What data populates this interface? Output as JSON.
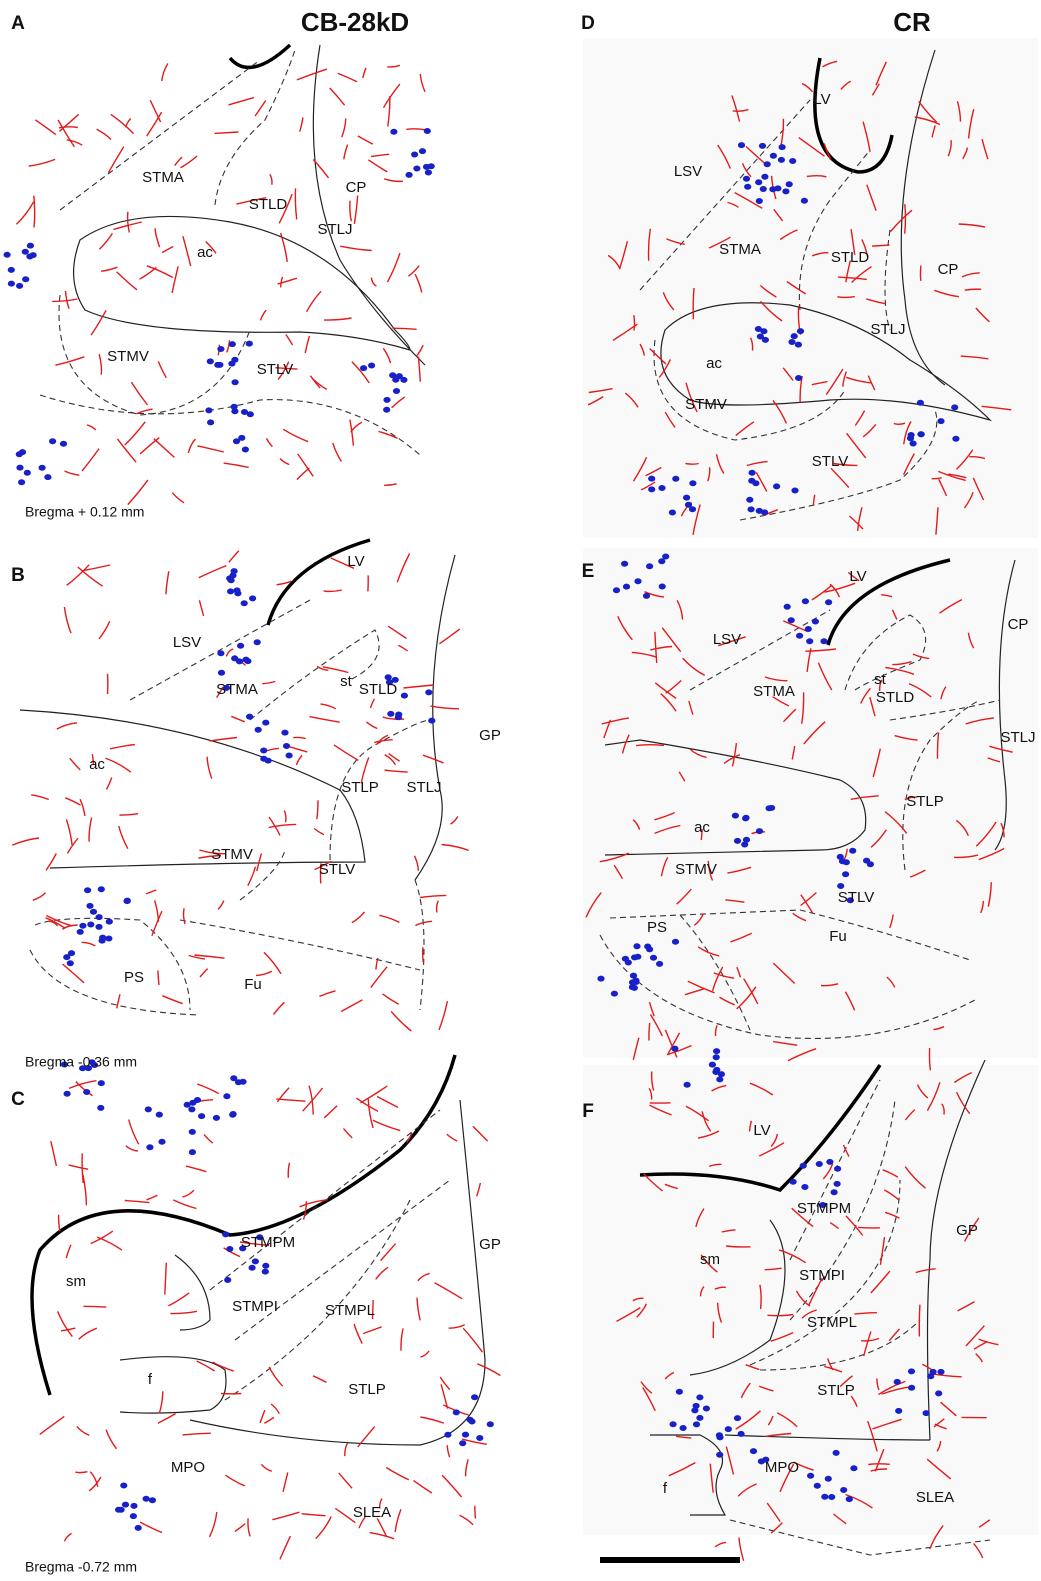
{
  "header": {
    "left_title": "CB-28kD",
    "right_title": "CR"
  },
  "panels": [
    {
      "letter": "A",
      "labels": [
        "STMA",
        "STLD",
        "CP",
        "STLJ",
        "ac",
        "STMV",
        "STLV"
      ],
      "caption": "Bregma + 0.12 mm"
    },
    {
      "letter": "B",
      "labels": [
        "LV",
        "LSV",
        "STMA",
        "st",
        "STLD",
        "GP",
        "ac",
        "STLP",
        "STLJ",
        "STMV",
        "STLV",
        "PS",
        "Fu"
      ],
      "caption": "Bregma -0.36 mm"
    },
    {
      "letter": "C",
      "labels": [
        "GP",
        "STMPM",
        "sm",
        "STMPI",
        "STMPL",
        "f",
        "STLP",
        "MPO",
        "SLEA"
      ],
      "caption": "Bregma -0.72 mm"
    },
    {
      "letter": "D",
      "labels": [
        "LV",
        "LSV",
        "STMA",
        "STLD",
        "CP",
        "STLJ",
        "ac",
        "STMV",
        "STLV"
      ]
    },
    {
      "letter": "E",
      "labels": [
        "LV",
        "LSV",
        "STMA",
        "st",
        "STLD",
        "CP",
        "STLJ",
        "STLP",
        "ac",
        "STMV",
        "STLV",
        "PS",
        "Fu"
      ]
    },
    {
      "letter": "F",
      "labels": [
        "LV",
        "STMPM",
        "GP",
        "sm",
        "STMPI",
        "STMPL",
        "STLP",
        "MPO",
        "f",
        "SLEA"
      ]
    }
  ]
}
